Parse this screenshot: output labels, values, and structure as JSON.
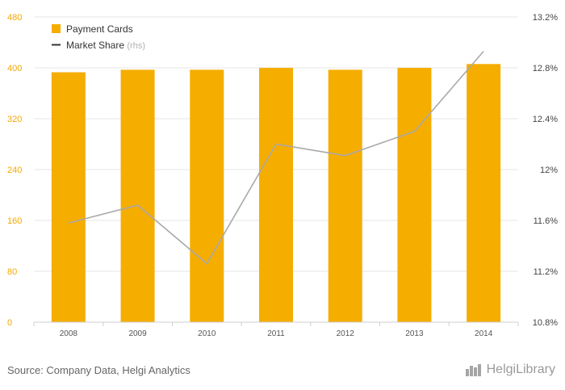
{
  "chart_data": {
    "type": "bar",
    "categories": [
      "2008",
      "2009",
      "2010",
      "2011",
      "2012",
      "2013",
      "2014"
    ],
    "series": [
      {
        "name": "Payment Cards",
        "type": "bar",
        "axis": "left",
        "color": "#f5ad00",
        "values": [
          393,
          397,
          397,
          400,
          397,
          400,
          406
        ]
      },
      {
        "name": "Market Share",
        "name_suffix": "(rhs)",
        "type": "line",
        "axis": "right",
        "color": "#a9a9a9",
        "values": [
          11.58,
          11.72,
          11.26,
          12.2,
          12.11,
          12.3,
          12.93
        ]
      }
    ],
    "left_axis": {
      "min": 0,
      "max": 480,
      "ticks": [
        "0",
        "80",
        "160",
        "240",
        "320",
        "400",
        "480"
      ],
      "color": "#f5a800"
    },
    "right_axis": {
      "min": 10.8,
      "max": 13.2,
      "ticks": [
        "10.8%",
        "11.2%",
        "11.6%",
        "12%",
        "12.4%",
        "12.8%",
        "13.2%"
      ]
    },
    "grid": true,
    "legend_position": "top-left"
  },
  "footer": {
    "source": "Source: Company Data, Helgi Analytics",
    "brand": "HelgiLibrary"
  }
}
